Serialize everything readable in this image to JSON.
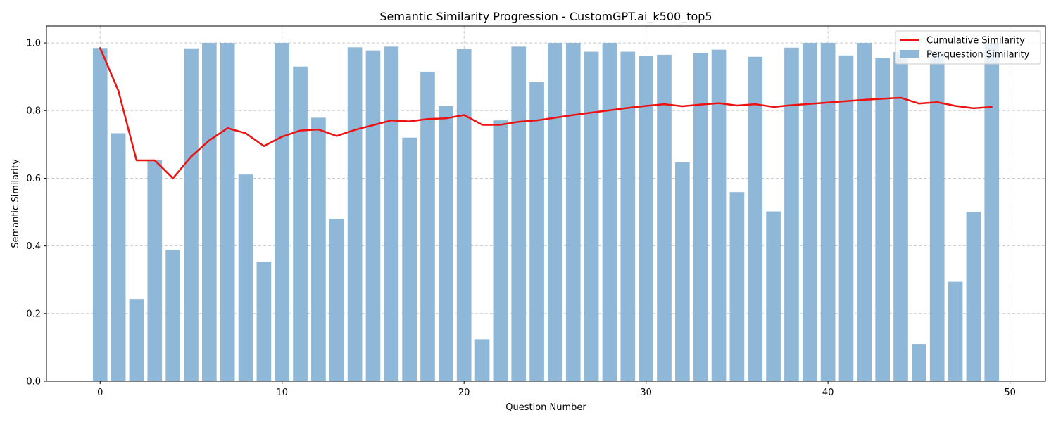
{
  "chart_data": {
    "type": "bar",
    "title": "Semantic Similarity Progression - CustomGPT.ai_k500_top5",
    "xlabel": "Question Number",
    "ylabel": "Semantic Similarity",
    "xlim": [
      -2.95,
      51.95
    ],
    "ylim": [
      0,
      1.05
    ],
    "xticks": [
      0,
      10,
      20,
      30,
      40,
      50
    ],
    "yticks": [
      0.0,
      0.2,
      0.4,
      0.6,
      0.8,
      1.0
    ],
    "ytick_labels": [
      "0.0",
      "0.2",
      "0.4",
      "0.6",
      "0.8",
      "1.0"
    ],
    "grid": true,
    "legend_position": "top-right",
    "x": [
      0,
      1,
      2,
      3,
      4,
      5,
      6,
      7,
      8,
      9,
      10,
      11,
      12,
      13,
      14,
      15,
      16,
      17,
      18,
      19,
      20,
      21,
      22,
      23,
      24,
      25,
      26,
      27,
      28,
      29,
      30,
      31,
      32,
      33,
      34,
      35,
      36,
      37,
      38,
      39,
      40,
      41,
      42,
      43,
      44,
      45,
      46,
      47,
      48,
      49
    ],
    "series": [
      {
        "name": "Per-question Similarity",
        "kind": "bar",
        "color": "#8fb8d8",
        "values": [
          0.985,
          0.733,
          0.243,
          0.653,
          0.388,
          0.984,
          1.0,
          1.0,
          0.611,
          0.353,
          1.0,
          0.93,
          0.779,
          0.48,
          0.987,
          0.978,
          0.989,
          0.72,
          0.915,
          0.813,
          0.982,
          0.124,
          0.771,
          0.989,
          0.884,
          1.0,
          1.0,
          0.974,
          1.0,
          0.974,
          0.961,
          0.965,
          0.647,
          0.971,
          0.98,
          0.559,
          0.959,
          0.502,
          0.986,
          1.0,
          1.0,
          0.963,
          1.0,
          0.956,
          0.973,
          0.11,
          0.975,
          0.294,
          0.501,
          1.0
        ]
      },
      {
        "name": "Cumulative Similarity",
        "kind": "line",
        "color": "#ee1111",
        "values": [
          0.985,
          0.859,
          0.653,
          0.653,
          0.6,
          0.664,
          0.712,
          0.748,
          0.733,
          0.695,
          0.723,
          0.741,
          0.744,
          0.725,
          0.743,
          0.757,
          0.771,
          0.768,
          0.775,
          0.777,
          0.787,
          0.758,
          0.758,
          0.767,
          0.771,
          0.779,
          0.787,
          0.794,
          0.801,
          0.808,
          0.814,
          0.819,
          0.813,
          0.818,
          0.822,
          0.815,
          0.819,
          0.811,
          0.816,
          0.82,
          0.824,
          0.828,
          0.832,
          0.835,
          0.838,
          0.821,
          0.825,
          0.814,
          0.807,
          0.811
        ]
      }
    ]
  }
}
